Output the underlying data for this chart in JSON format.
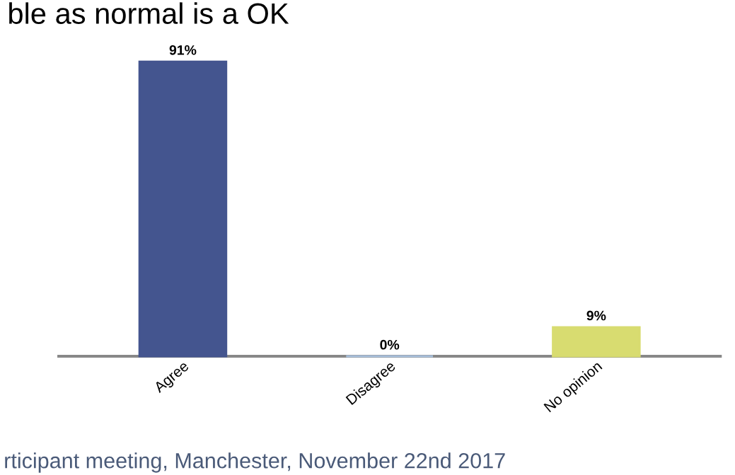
{
  "chart_data": {
    "type": "bar",
    "title": "ble as normal is a OK",
    "categories": [
      "Agree",
      "Disagree",
      "No opinion"
    ],
    "values": [
      91,
      0,
      9
    ],
    "colors": [
      "#44558f",
      "#a9c0dc",
      "#d8dc70"
    ],
    "value_labels": [
      "91%",
      "0%",
      "9%"
    ],
    "annotations": [
      "rticipant meeting, Manchester, November 22nd 2017"
    ]
  }
}
